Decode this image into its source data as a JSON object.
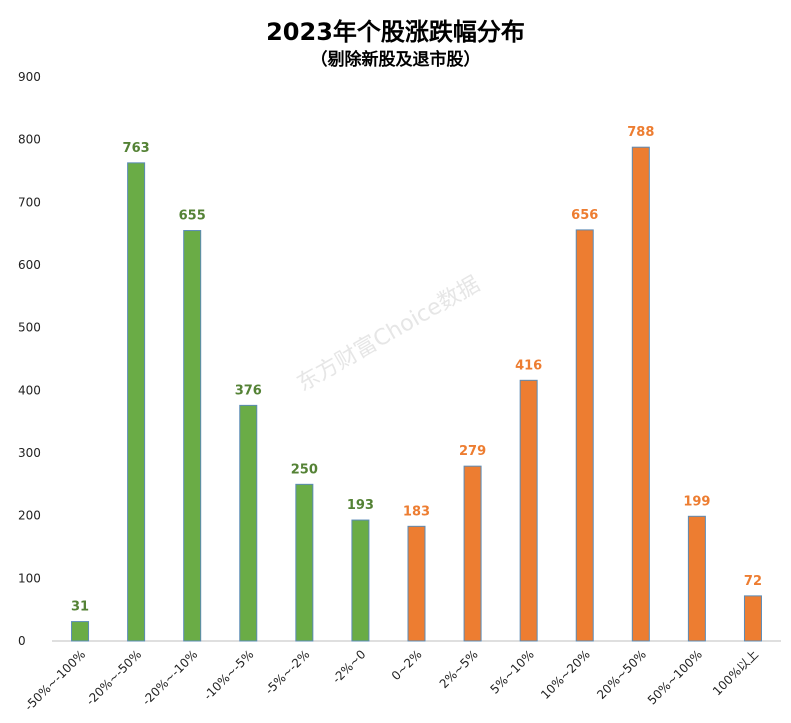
{
  "chart_data": {
    "type": "bar",
    "title": "2023年个股涨跌幅分布",
    "subtitle": "（剔除新股及退市股）",
    "watermark": "东方财富Choice数据",
    "categories": [
      "-50%~-100%",
      "-20%~-50%",
      "-20%~-10%",
      "-10%~-5%",
      "-5%~-2%",
      "-2%~0",
      "0~2%",
      "2%~5%",
      "5%~10%",
      "10%~20%",
      "20%~50%",
      "50%~100%",
      "100%以上"
    ],
    "values": [
      31,
      763,
      655,
      376,
      250,
      193,
      183,
      279,
      416,
      656,
      788,
      199,
      72
    ],
    "bar_colors": [
      "#6aac46",
      "#6aac46",
      "#6aac46",
      "#6aac46",
      "#6aac46",
      "#6aac46",
      "#ed7d31",
      "#ed7d31",
      "#ed7d31",
      "#ed7d31",
      "#ed7d31",
      "#ed7d31",
      "#ed7d31"
    ],
    "label_colors": [
      "#548235",
      "#548235",
      "#548235",
      "#548235",
      "#548235",
      "#548235",
      "#ed7d31",
      "#ed7d31",
      "#ed7d31",
      "#ed7d31",
      "#ed7d31",
      "#ed7d31",
      "#ed7d31"
    ],
    "ylim": [
      0,
      900
    ],
    "yticks": [
      0,
      100,
      200,
      300,
      400,
      500,
      600,
      700,
      800,
      900
    ],
    "xlabel": "",
    "ylabel": "",
    "grid": false,
    "legend": "none"
  }
}
